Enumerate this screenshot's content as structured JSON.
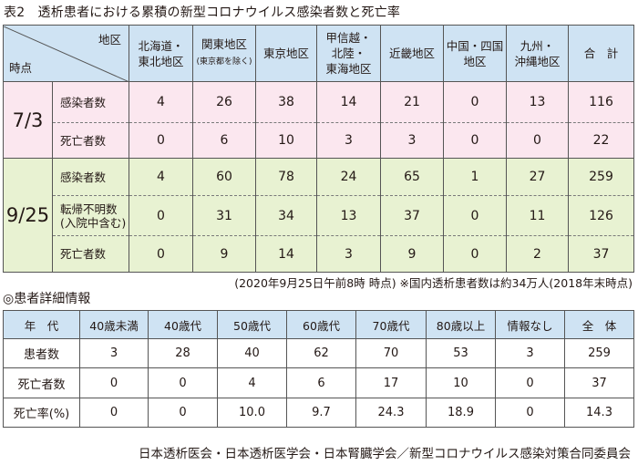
{
  "title": "表2　透析患者における累積の新型コロナウイルス感染者数と死亡率",
  "table1": {
    "corner_region": "地区",
    "corner_time": "時点",
    "headers": [
      {
        "line1": "北海道・",
        "line2": "東北地区",
        "small": ""
      },
      {
        "line1": "関東地区",
        "line2": "",
        "small": "(東京都を除く)"
      },
      {
        "line1": "東京地区",
        "line2": "",
        "small": ""
      },
      {
        "line1": "甲信越・",
        "line2": "北陸・",
        "line3": "東海地区",
        "small": ""
      },
      {
        "line1": "近畿地区",
        "line2": "",
        "small": ""
      },
      {
        "line1": "中国・四国",
        "line2": "地区",
        "small": ""
      },
      {
        "line1": "九州・",
        "line2": "沖縄地区",
        "small": ""
      },
      {
        "line1": "合　計",
        "line2": "",
        "small": ""
      }
    ],
    "groups": [
      {
        "date": "7/3",
        "rows": [
          {
            "label": "感染者数",
            "label2": "",
            "values": [
              "4",
              "26",
              "38",
              "14",
              "21",
              "0",
              "13",
              "116"
            ]
          },
          {
            "label": "死亡者数",
            "label2": "",
            "values": [
              "0",
              "6",
              "10",
              "3",
              "3",
              "0",
              "0",
              "22"
            ]
          }
        ]
      },
      {
        "date": "9/25",
        "rows": [
          {
            "label": "感染者数",
            "label2": "",
            "values": [
              "4",
              "60",
              "78",
              "24",
              "65",
              "1",
              "27",
              "259"
            ]
          },
          {
            "label": "転帰不明数",
            "label2": "(入院中含む)",
            "values": [
              "0",
              "31",
              "34",
              "13",
              "37",
              "0",
              "11",
              "126"
            ]
          },
          {
            "label": "死亡者数",
            "label2": "",
            "values": [
              "0",
              "9",
              "14",
              "3",
              "9",
              "0",
              "2",
              "37"
            ]
          }
        ]
      }
    ]
  },
  "note": "(2020年9月25日午前8時 時点) ※国内透析患者数は約34万人(2018年末時点)",
  "subtitle": "◎患者詳細情報",
  "table2": {
    "headers": [
      "年　代",
      "40歳未満",
      "40歳代",
      "50歳代",
      "60歳代",
      "70歳代",
      "80歳以上",
      "情報なし",
      "全　体"
    ],
    "rows": [
      {
        "label": "患者数",
        "values": [
          "3",
          "28",
          "40",
          "62",
          "70",
          "53",
          "3",
          "259"
        ]
      },
      {
        "label": "死亡者数",
        "values": [
          "0",
          "0",
          "4",
          "6",
          "17",
          "10",
          "0",
          "37"
        ]
      },
      {
        "label": "死亡率(%)",
        "values": [
          "0",
          "0",
          "10.0",
          "9.7",
          "24.3",
          "18.9",
          "0",
          "14.3"
        ]
      }
    ]
  },
  "footer": "日本透析医会・日本透析医学会・日本腎臓学会／新型コロナウイルス感染対策合同委員会",
  "colors": {
    "header_blue": "#cfe3f3",
    "pink_rows": "#fbe7ef",
    "green_rows": "#e8f2d2"
  }
}
